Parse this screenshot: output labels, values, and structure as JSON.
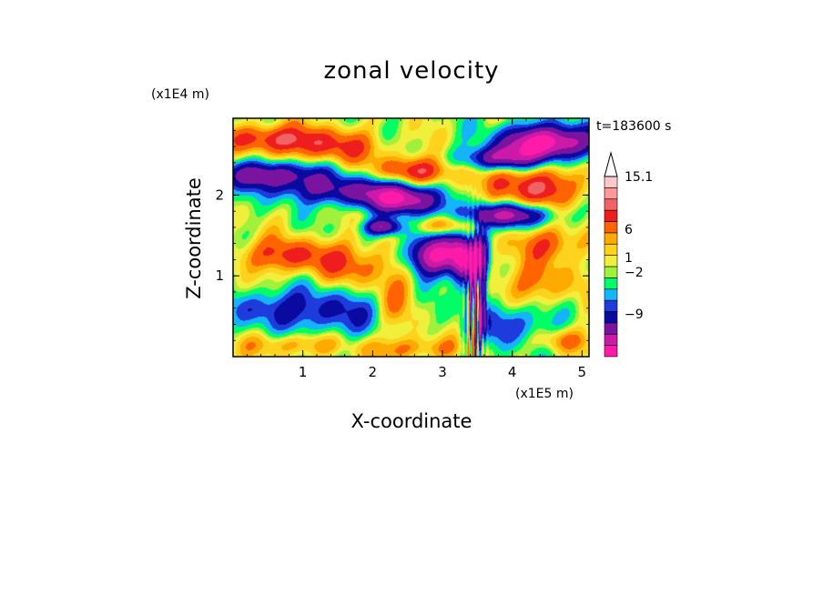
{
  "chart_data": {
    "type": "heatmap",
    "title": "zonal velocity",
    "xlabel": "X-coordinate",
    "ylabel": "Z-coordinate",
    "x_scale_label": "(x1E5 m)",
    "y_scale_label": "(x1E4 m)",
    "time_label": "t=183600 s",
    "xlim": [
      0.0,
      5.1
    ],
    "ylim": [
      0.0,
      2.95
    ],
    "x_ticks": [
      1,
      2,
      3,
      4,
      5
    ],
    "x_tick_labels": [
      "1",
      "2",
      "3",
      "4",
      "5"
    ],
    "y_ticks": [
      1,
      2
    ],
    "y_tick_labels": [
      "1",
      "2"
    ],
    "colorbar": {
      "colors": [
        "#ff1aaa",
        "#cc1aa8",
        "#7a14a0",
        "#0a0aa0",
        "#1e3cdc",
        "#14b4ff",
        "#00ff66",
        "#a0f03c",
        "#f0f03c",
        "#ffd21e",
        "#ffaa00",
        "#ff6400",
        "#ee1e1e",
        "#f06464",
        "#ff9a9a",
        "#ffc8c8"
      ],
      "tick_labels": [
        "15.1",
        "6",
        "1",
        "−2",
        "−9"
      ],
      "tick_values": [
        15.1,
        6,
        1,
        -2,
        -9
      ],
      "extend": "max"
    },
    "features": [
      {
        "x": 3.45,
        "z": 0.9,
        "amp": -14,
        "sx": 0.07,
        "sz": 0.5,
        "tilt": 0.12
      },
      {
        "x": 3.55,
        "z": 0.7,
        "amp": -12,
        "sx": 0.05,
        "sz": 0.45,
        "tilt": 0.1
      },
      {
        "x": 3.5,
        "z": 0.6,
        "amp": 10,
        "sx": 0.04,
        "sz": 0.35,
        "tilt": 0.1
      },
      {
        "x": 3.38,
        "z": 0.45,
        "amp": 8,
        "sx": 0.05,
        "sz": 0.35,
        "tilt": 0.0
      },
      {
        "x": 2.9,
        "z": 1.25,
        "amp": -14,
        "sx": 0.3,
        "sz": 0.17,
        "tilt": 0.0
      },
      {
        "x": 3.3,
        "z": 1.2,
        "amp": -11,
        "sx": 0.12,
        "sz": 0.22,
        "tilt": 0.0
      },
      {
        "x": 2.45,
        "z": 1.95,
        "amp": -13,
        "sx": 0.4,
        "sz": 0.13,
        "tilt": -0.25
      },
      {
        "x": 2.15,
        "z": 1.6,
        "amp": -10,
        "sx": 0.2,
        "sz": 0.07,
        "tilt": 0.0
      },
      {
        "x": 3.9,
        "z": 1.75,
        "amp": -11,
        "sx": 0.45,
        "sz": 0.1,
        "tilt": 0.12
      },
      {
        "x": 3.8,
        "z": 2.45,
        "amp": -10,
        "sx": 0.35,
        "sz": 0.1,
        "tilt": 0.1
      },
      {
        "x": 4.5,
        "z": 2.65,
        "amp": -16,
        "sx": 0.45,
        "sz": 0.15,
        "tilt": 0.0
      },
      {
        "x": 0.55,
        "z": 2.25,
        "amp": -10,
        "sx": 0.55,
        "sz": 0.12,
        "tilt": -0.2
      },
      {
        "x": 1.5,
        "z": 2.05,
        "amp": -7,
        "sx": 0.6,
        "sz": 0.12,
        "tilt": 0.0
      },
      {
        "x": 1.4,
        "z": 2.6,
        "amp": 6,
        "sx": 0.5,
        "sz": 0.15,
        "tilt": 0.0
      },
      {
        "x": 0.5,
        "z": 2.7,
        "amp": 7,
        "sx": 0.45,
        "sz": 0.12,
        "tilt": 0.0
      },
      {
        "x": 2.65,
        "z": 2.3,
        "amp": 7,
        "sx": 0.4,
        "sz": 0.12,
        "tilt": -0.15
      },
      {
        "x": 3.05,
        "z": 1.62,
        "amp": 6,
        "sx": 0.3,
        "sz": 0.09,
        "tilt": 0.0
      },
      {
        "x": 4.3,
        "z": 2.1,
        "amp": 7,
        "sx": 0.6,
        "sz": 0.18,
        "tilt": 0.15
      },
      {
        "x": 4.55,
        "z": 1.4,
        "amp": 5,
        "sx": 0.4,
        "sz": 0.15,
        "tilt": 0.0
      },
      {
        "x": 4.3,
        "z": 0.9,
        "amp": 4,
        "sx": 0.5,
        "sz": 0.2,
        "tilt": 0.0
      },
      {
        "x": 0.8,
        "z": 1.25,
        "amp": 6,
        "sx": 0.6,
        "sz": 0.15,
        "tilt": 0.0
      },
      {
        "x": 1.8,
        "z": 1.1,
        "amp": 4,
        "sx": 0.4,
        "sz": 0.18,
        "tilt": 0.0
      },
      {
        "x": 1.4,
        "z": 0.55,
        "amp": -5,
        "sx": 0.6,
        "sz": 0.22,
        "tilt": 0.0
      },
      {
        "x": 0.5,
        "z": 0.6,
        "amp": -4,
        "sx": 0.4,
        "sz": 0.15,
        "tilt": 0.0
      },
      {
        "x": 4.0,
        "z": 0.4,
        "amp": -5,
        "sx": 0.4,
        "sz": 0.2,
        "tilt": 0.0
      },
      {
        "x": 0.9,
        "z": 0.15,
        "amp": 4,
        "sx": 0.5,
        "sz": 0.1,
        "tilt": 0.0
      },
      {
        "x": 2.6,
        "z": 0.1,
        "amp": 4,
        "sx": 0.5,
        "sz": 0.1,
        "tilt": 0.0
      },
      {
        "x": 4.7,
        "z": 0.2,
        "amp": 4,
        "sx": 0.3,
        "sz": 0.1,
        "tilt": 0.0
      },
      {
        "x": 2.35,
        "z": 0.7,
        "amp": 4,
        "sx": 0.2,
        "sz": 0.3,
        "tilt": 0.0
      }
    ]
  }
}
